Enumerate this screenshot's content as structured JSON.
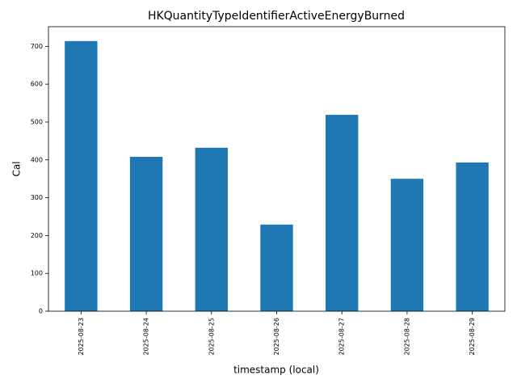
{
  "chart_data": {
    "type": "bar",
    "title": "HKQuantityTypeIdentifierActiveEnergyBurned",
    "x_label": "timestamp (local)",
    "y_label": "Cal",
    "categories": [
      "2025-08-23",
      "2025-08-24",
      "2025-08-25",
      "2025-08-26",
      "2025-08-27",
      "2025-08-28",
      "2025-08-29"
    ],
    "values": [
      714,
      408,
      432,
      229,
      519,
      350,
      393
    ],
    "color": "#1f77b4",
    "ylim": [
      0,
      752
    ],
    "yticks": [
      0,
      100,
      200,
      300,
      400,
      500,
      600,
      700
    ],
    "grid": false
  }
}
